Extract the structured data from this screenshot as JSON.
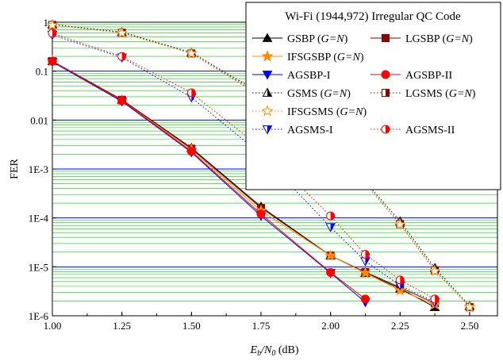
{
  "chart_data": {
    "type": "line",
    "title": "Wi-Fi (1944,972) Irregular QC Code",
    "xlabel_main": "E",
    "xlabel_sub1": "b",
    "xlabel_mid": "/N",
    "xlabel_sub2": "0",
    "xlabel_unit": " (dB)",
    "ylabel": "FER",
    "xlim": [
      1.0,
      2.6
    ],
    "ylim": [
      1e-06,
      1
    ],
    "yscale": "log",
    "x_ticks": [
      "1.00",
      "1.25",
      "1.50",
      "1.75",
      "2.00",
      "2.25",
      "2.50"
    ],
    "y_ticks": [
      "1E-6",
      "1E-5",
      "1E-4",
      "1E-3",
      "0.01",
      "0.1",
      "1"
    ],
    "grid": true,
    "legend_position": "top-right",
    "colors": {
      "black": "#000000",
      "darkred": "#8b0000",
      "orange": "#ff8c00",
      "blue": "#0000ff",
      "red": "#ff0000",
      "majorgrid": "#0000ff",
      "minorgrid": "#00cc00"
    },
    "series": [
      {
        "name": "GSBP (G=N)",
        "label_main": "GSBP (",
        "label_ital": "G=N",
        "label_tail": ")",
        "color": "#000000",
        "marker": "triangle-up",
        "fill": "full",
        "dash": false,
        "x": [
          1.0,
          1.25,
          1.5,
          1.75,
          2.0,
          2.125,
          2.25,
          2.375
        ],
        "y": [
          0.16,
          0.026,
          0.0027,
          0.00017,
          1.7e-05,
          7.5e-06,
          3.6e-06,
          1.5e-06
        ]
      },
      {
        "name": "LGSBP (G=N)",
        "label_main": "LGSBP (",
        "label_ital": "G=N",
        "label_tail": ")",
        "color": "#8b0000",
        "marker": "square",
        "fill": "full",
        "dash": false,
        "x": [
          1.0,
          1.25,
          1.5,
          1.75,
          2.0,
          2.125,
          2.25,
          2.375
        ],
        "y": [
          0.16,
          0.026,
          0.0026,
          0.00016,
          1.7e-05,
          7.8e-06,
          3.8e-06,
          1.8e-06
        ]
      },
      {
        "name": "IFSGSBP (G=N)",
        "label_main": "IFSGSBP (",
        "label_ital": "G=N",
        "label_tail": ")",
        "color": "#ff8c00",
        "marker": "star",
        "fill": "full",
        "dash": false,
        "x": [
          1.0,
          1.25,
          1.5,
          1.75,
          2.0,
          2.125,
          2.25,
          2.375
        ],
        "y": [
          0.16,
          0.025,
          0.0025,
          0.00014,
          1.7e-05,
          7.5e-06,
          3.3e-06,
          1.7e-06
        ]
      },
      {
        "name": "AGSBP-I",
        "label_main": "AGSBP-I",
        "label_ital": "",
        "label_tail": "",
        "color": "#0000ff",
        "marker": "triangle-down",
        "fill": "full",
        "dash": false,
        "x": [
          1.0,
          1.25,
          1.5,
          1.75,
          2.0,
          2.125
        ],
        "y": [
          0.155,
          0.024,
          0.0022,
          0.00011,
          7.5e-06,
          1.9e-06
        ]
      },
      {
        "name": "AGSBP-II",
        "label_main": "AGSBP-II",
        "label_ital": "",
        "label_tail": "",
        "color": "#ff0000",
        "marker": "circle",
        "fill": "full",
        "dash": false,
        "x": [
          1.0,
          1.25,
          1.5,
          1.75,
          2.0,
          2.125
        ],
        "y": [
          0.16,
          0.025,
          0.0023,
          0.00012,
          7.7e-06,
          2.2e-06
        ]
      },
      {
        "name": "GSMS (G=N)",
        "label_main": "GSMS (",
        "label_ital": "G=N",
        "label_tail": ")",
        "color": "#000000",
        "marker": "triangle-up",
        "fill": "half",
        "dash": true,
        "x": [
          1.0,
          1.25,
          1.5,
          1.75,
          2.0,
          2.125,
          2.25,
          2.375,
          2.5
        ],
        "y": [
          0.9,
          0.63,
          0.24,
          0.035,
          0.0032,
          0.00055,
          8.5e-05,
          9.5e-06,
          1.6e-06
        ]
      },
      {
        "name": "LGSMS (G=N)",
        "label_main": "LGSMS (",
        "label_ital": "G=N",
        "label_tail": ")",
        "color": "#8b0000",
        "marker": "square",
        "fill": "half",
        "dash": true,
        "x": [
          1.0,
          1.25,
          1.5,
          1.75,
          2.0,
          2.125,
          2.25,
          2.375,
          2.5
        ],
        "y": [
          0.88,
          0.61,
          0.23,
          0.032,
          0.0028,
          0.0005,
          7.5e-05,
          8.5e-06,
          1.5e-06
        ]
      },
      {
        "name": "IFSGSMS (G=N)",
        "label_main": "IFSGSMS (",
        "label_ital": "G=N",
        "label_tail": ")",
        "color": "#ff8c00",
        "marker": "star",
        "fill": "open",
        "dash": true,
        "x": [
          1.0,
          1.25,
          1.5,
          1.75,
          2.0,
          2.125,
          2.25,
          2.375,
          2.5
        ],
        "y": [
          0.87,
          0.6,
          0.23,
          0.03,
          0.0027,
          0.0005,
          7.3e-05,
          8.2e-06,
          1.5e-06
        ]
      },
      {
        "name": "AGSMS-I",
        "label_main": "AGSMS-I",
        "label_ital": "",
        "label_tail": "",
        "color": "#0000ff",
        "marker": "triangle-down",
        "fill": "half",
        "dash": true,
        "x": [
          1.0,
          1.25,
          1.5,
          1.75,
          2.0,
          2.125,
          2.25,
          2.375
        ],
        "y": [
          0.55,
          0.19,
          0.029,
          0.002,
          6.5e-05,
          1.3e-05,
          4.2e-06,
          1.9e-06
        ]
      },
      {
        "name": "AGSMS-II",
        "label_main": "AGSMS-II",
        "label_ital": "",
        "label_tail": "",
        "color": "#ff0000",
        "marker": "circle",
        "fill": "half",
        "dash": true,
        "x": [
          1.0,
          1.25,
          1.5,
          1.75,
          2.0,
          2.125,
          2.25,
          2.375
        ],
        "y": [
          0.6,
          0.2,
          0.036,
          0.0027,
          0.00011,
          1.8e-05,
          5.4e-06,
          2.2e-06
        ]
      }
    ]
  }
}
